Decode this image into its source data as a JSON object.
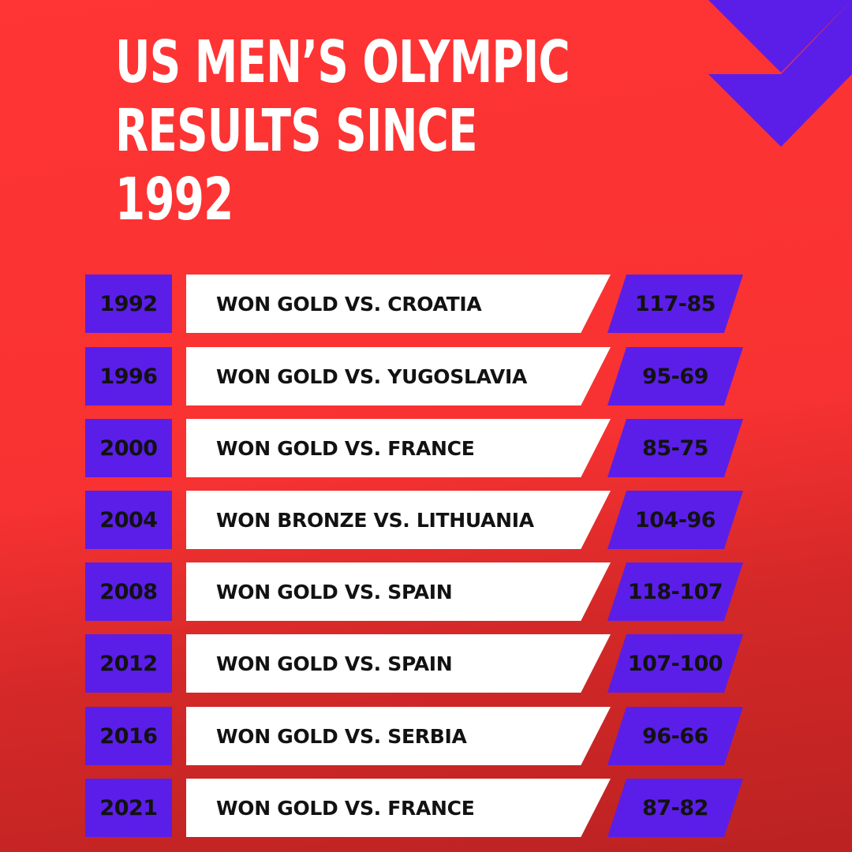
{
  "title": {
    "line1": "US MEN’S OLYMPIC",
    "line2": "RESULTS SINCE",
    "line3": "1992"
  },
  "colors": {
    "background": "#ff3434",
    "accent_purple": "#5b1ee8",
    "text_dark": "#121212",
    "text_light": "#ffffff",
    "result_box": "#ffffff"
  },
  "decorations": {
    "corner_graphic": "purple-triangles-icon"
  },
  "results": [
    {
      "year": "1992",
      "result": "WON GOLD VS.  CROATIA",
      "score": "117-85"
    },
    {
      "year": "1996",
      "result": "WON GOLD VS. YUGOSLAVIA",
      "score": "95-69"
    },
    {
      "year": "2000",
      "result": "WON GOLD VS. FRANCE",
      "score": "85-75"
    },
    {
      "year": "2004",
      "result": "WON BRONZE VS. LITHUANIA",
      "score": "104-96"
    },
    {
      "year": "2008",
      "result": "WON GOLD VS. SPAIN",
      "score": "118-107"
    },
    {
      "year": "2012",
      "result": "WON GOLD VS. SPAIN",
      "score": "107-100"
    },
    {
      "year": "2016",
      "result": "WON GOLD VS. SERBIA",
      "score": "96-66"
    },
    {
      "year": "2021",
      "result": "WON GOLD VS. FRANCE",
      "score": "87-82"
    }
  ]
}
